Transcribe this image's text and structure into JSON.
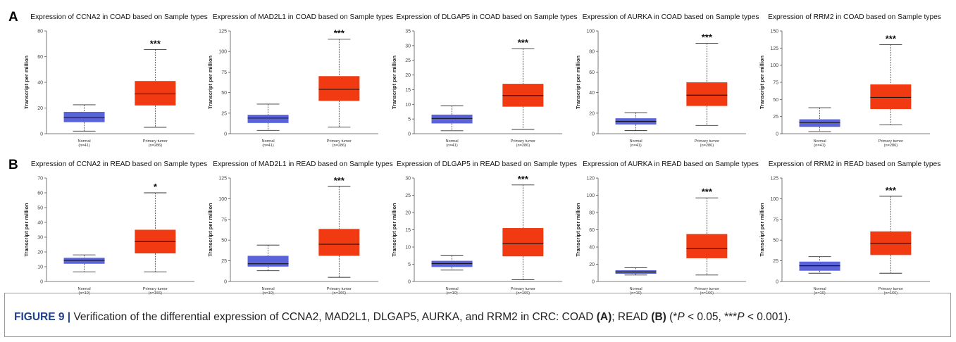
{
  "panels": [
    {
      "letter": "A"
    },
    {
      "letter": "B"
    }
  ],
  "caption": {
    "figure_label": "FIGURE 9 |",
    "text_1": " Verification of the differential expression of CCNA2, MAD2L1, DLGAP5, AURKA, and RRM2 in CRC: COAD ",
    "ref_a": "(A)",
    "text_2": "; READ ",
    "ref_b": "(B)",
    "text_3": " (*",
    "p_1": "P",
    "text_4": " < 0.05, ***",
    "p_2": "P",
    "text_5": " < 0.001)."
  },
  "colors": {
    "normal_box": "#5b63db",
    "tumor_box": "#f23a12",
    "median": "#1a1a1a",
    "axis": "#555555"
  },
  "chart_data": [
    {
      "type": "box",
      "panel": "A",
      "title": "Expression of CCNA2 in COAD based on Sample types",
      "ylabel": "Transcript per million",
      "ylim": [
        0,
        80
      ],
      "yticks": [
        0,
        20,
        40,
        60,
        80
      ],
      "categories": [
        "Normal",
        "Primary tumor"
      ],
      "counts": [
        "(n=41)",
        "(n=286)"
      ],
      "series": [
        {
          "min": 2,
          "q1": 9,
          "median": 12.5,
          "q3": 17,
          "max": 22.5
        },
        {
          "min": 5,
          "q1": 22,
          "median": 31,
          "q3": 41,
          "max": 65.5
        }
      ],
      "significance": "***"
    },
    {
      "type": "box",
      "panel": "A",
      "title": "Expression of MAD2L1 in COAD based on Sample types",
      "ylabel": "Transcript per million",
      "ylim": [
        0,
        125
      ],
      "yticks": [
        0,
        25,
        50,
        75,
        100,
        125
      ],
      "categories": [
        "Normal",
        "Primary tumor"
      ],
      "counts": [
        "(n=41)",
        "(n=286)"
      ],
      "series": [
        {
          "min": 4,
          "q1": 13,
          "median": 19,
          "q3": 23,
          "max": 36
        },
        {
          "min": 8,
          "q1": 40,
          "median": 54,
          "q3": 70,
          "max": 115
        }
      ],
      "significance": "***"
    },
    {
      "type": "box",
      "panel": "A",
      "title": "Expression of DLGAP5 in COAD based on Sample types",
      "ylabel": "Transcript per million",
      "ylim": [
        0,
        35
      ],
      "yticks": [
        0,
        5,
        10,
        15,
        20,
        25,
        30,
        35
      ],
      "categories": [
        "Normal",
        "Primary tumor"
      ],
      "counts": [
        "(n=41)",
        "(n=286)"
      ],
      "series": [
        {
          "min": 1,
          "q1": 3.5,
          "median": 5.2,
          "q3": 6.5,
          "max": 9.5
        },
        {
          "min": 1.5,
          "q1": 9.2,
          "median": 13,
          "q3": 17,
          "max": 29
        }
      ],
      "significance": "***"
    },
    {
      "type": "box",
      "panel": "A",
      "title": "Expression of AURKA in COAD based on Sample types",
      "ylabel": "Transcript per million",
      "ylim": [
        0,
        100
      ],
      "yticks": [
        0,
        20,
        40,
        60,
        80,
        100
      ],
      "categories": [
        "Normal",
        "Primary tumor"
      ],
      "counts": [
        "(n=41)",
        "(n=286)"
      ],
      "series": [
        {
          "min": 3,
          "q1": 9,
          "median": 12,
          "q3": 15,
          "max": 20.5
        },
        {
          "min": 8,
          "q1": 27,
          "median": 37.5,
          "q3": 50,
          "max": 88
        }
      ],
      "significance": "***"
    },
    {
      "type": "box",
      "panel": "A",
      "title": "Expression of RRM2 in COAD based on Sample types",
      "ylabel": "Transcript per million",
      "ylim": [
        0,
        150
      ],
      "yticks": [
        0,
        25,
        50,
        75,
        100,
        125,
        150
      ],
      "categories": [
        "Normal",
        "Primary tumor"
      ],
      "counts": [
        "(n=41)",
        "(n=286)"
      ],
      "series": [
        {
          "min": 3,
          "q1": 10,
          "median": 16,
          "q3": 21,
          "max": 38
        },
        {
          "min": 13,
          "q1": 36,
          "median": 53,
          "q3": 72,
          "max": 130
        }
      ],
      "significance": "***"
    },
    {
      "type": "box",
      "panel": "B",
      "title": "Expression of CCNA2 in READ based on Sample types",
      "ylabel": "Transcript per million",
      "ylim": [
        0,
        70
      ],
      "yticks": [
        0,
        10,
        20,
        30,
        40,
        50,
        60,
        70
      ],
      "categories": [
        "Normal",
        "Primary tumor"
      ],
      "counts": [
        "(n=10)",
        "(n=166)"
      ],
      "series": [
        {
          "min": 6.5,
          "q1": 12,
          "median": 14.3,
          "q3": 16,
          "max": 18
        },
        {
          "min": 6.5,
          "q1": 19,
          "median": 27,
          "q3": 35,
          "max": 60
        }
      ],
      "significance": "*"
    },
    {
      "type": "box",
      "panel": "B",
      "title": "Expression of MAD2L1 in READ based on Sample types",
      "ylabel": "Transcript per million",
      "ylim": [
        0,
        125
      ],
      "yticks": [
        0,
        25,
        50,
        75,
        100,
        125
      ],
      "categories": [
        "Normal",
        "Primary tumor"
      ],
      "counts": [
        "(n=10)",
        "(n=166)"
      ],
      "series": [
        {
          "min": 13,
          "q1": 18,
          "median": 21.5,
          "q3": 31,
          "max": 44
        },
        {
          "min": 5,
          "q1": 31,
          "median": 45,
          "q3": 63.5,
          "max": 115
        }
      ],
      "significance": "***"
    },
    {
      "type": "box",
      "panel": "B",
      "title": "Expression of DLGAP5 in READ based on Sample types",
      "ylabel": "Transcript per million",
      "ylim": [
        0,
        30
      ],
      "yticks": [
        0,
        5,
        10,
        15,
        20,
        25,
        30
      ],
      "categories": [
        "Normal",
        "Primary tumor"
      ],
      "counts": [
        "(n=10)",
        "(n=166)"
      ],
      "series": [
        {
          "min": 3.3,
          "q1": 4.2,
          "median": 5.2,
          "q3": 6,
          "max": 7.5
        },
        {
          "min": 0.5,
          "q1": 7.3,
          "median": 11,
          "q3": 15.5,
          "max": 28
        }
      ],
      "significance": "***"
    },
    {
      "type": "box",
      "panel": "B",
      "title": "Expression of AURKA in READ based on Sample types",
      "ylabel": "Transcript per million",
      "ylim": [
        0,
        120
      ],
      "yticks": [
        0,
        20,
        40,
        60,
        80,
        100,
        120
      ],
      "categories": [
        "Normal",
        "Primary tumor"
      ],
      "counts": [
        "(n=10)",
        "(n=166)"
      ],
      "series": [
        {
          "min": 7.5,
          "q1": 9,
          "median": 11,
          "q3": 13,
          "max": 16
        },
        {
          "min": 7.5,
          "q1": 27,
          "median": 38,
          "q3": 55,
          "max": 97
        }
      ],
      "significance": "***"
    },
    {
      "type": "box",
      "panel": "B",
      "title": "Expression of RRM2 in READ based on Sample types",
      "ylabel": "Transcript per million",
      "ylim": [
        0,
        125
      ],
      "yticks": [
        0,
        25,
        50,
        75,
        100,
        125
      ],
      "categories": [
        "Normal",
        "Primary tumor"
      ],
      "counts": [
        "(n=10)",
        "(n=166)"
      ],
      "series": [
        {
          "min": 10,
          "q1": 13,
          "median": 19,
          "q3": 24,
          "max": 30
        },
        {
          "min": 10,
          "q1": 32,
          "median": 46,
          "q3": 60.5,
          "max": 103
        }
      ],
      "significance": "***"
    }
  ]
}
